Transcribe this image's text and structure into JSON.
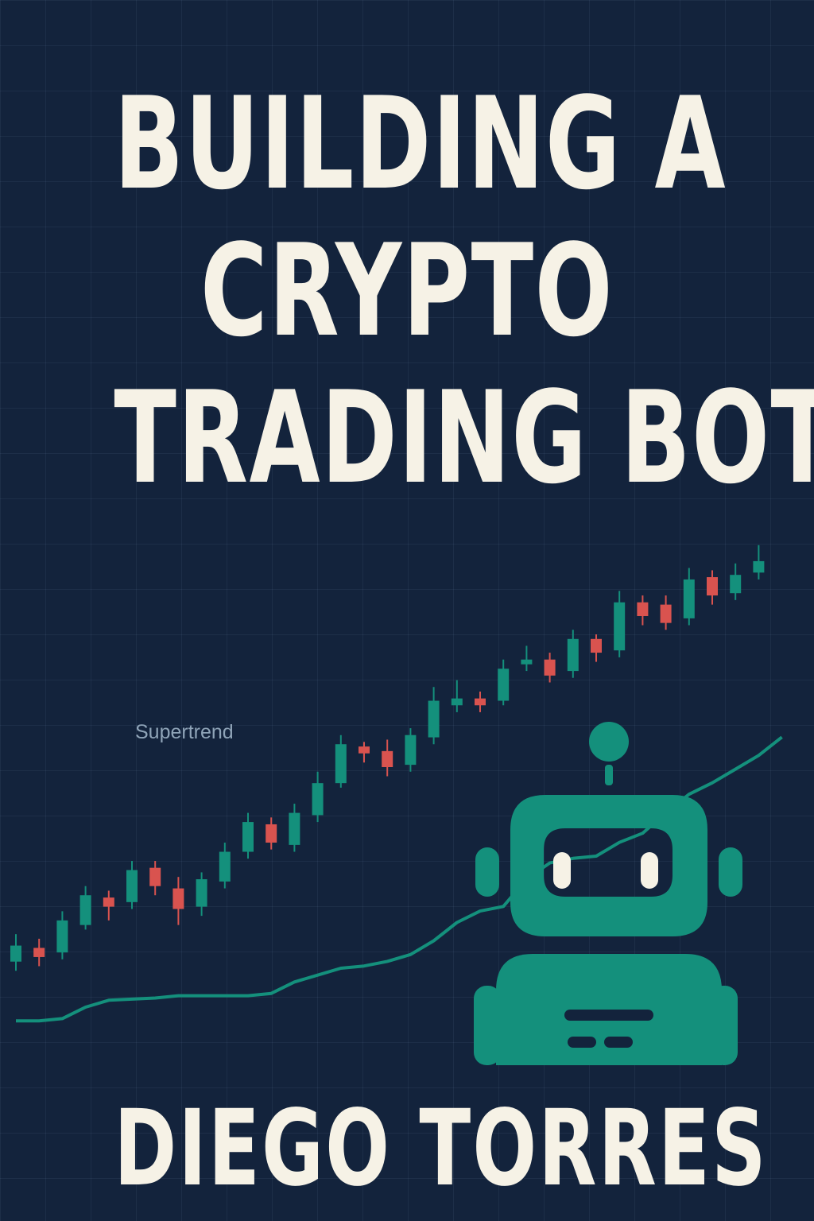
{
  "cover": {
    "title_lines": [
      "BUILDING A",
      "CRYPTO",
      "TRADING BOT"
    ],
    "author": "DIEGO TORRES",
    "background_color": "#13233c",
    "accent_color": "#14907c",
    "down_color": "#d9534f",
    "text_color": "#f6f2e6"
  },
  "chart": {
    "indicator_label": "Supertrend",
    "candles": [
      {
        "o": 102.0,
        "c": 109.0,
        "h": 114.0,
        "l": 98.0
      },
      {
        "o": 108.0,
        "c": 104.0,
        "h": 112.0,
        "l": 100.0
      },
      {
        "o": 106.0,
        "c": 120.0,
        "h": 124.0,
        "l": 103.0
      },
      {
        "o": 118.0,
        "c": 131.0,
        "h": 135.0,
        "l": 116.0
      },
      {
        "o": 130.0,
        "c": 126.0,
        "h": 133.0,
        "l": 120.0
      },
      {
        "o": 128.0,
        "c": 142.0,
        "h": 146.0,
        "l": 125.0
      },
      {
        "o": 143.0,
        "c": 135.0,
        "h": 146.0,
        "l": 131.0
      },
      {
        "o": 134.0,
        "c": 125.0,
        "h": 139.0,
        "l": 118.0
      },
      {
        "o": 126.0,
        "c": 138.0,
        "h": 141.0,
        "l": 122.0
      },
      {
        "o": 137.0,
        "c": 150.0,
        "h": 154.0,
        "l": 134.0
      },
      {
        "o": 150.0,
        "c": 163.0,
        "h": 167.0,
        "l": 147.0
      },
      {
        "o": 162.0,
        "c": 154.0,
        "h": 165.0,
        "l": 151.0
      },
      {
        "o": 153.0,
        "c": 167.0,
        "h": 171.0,
        "l": 150.0
      },
      {
        "o": 166.0,
        "c": 180.0,
        "h": 185.0,
        "l": 163.0
      },
      {
        "o": 180.0,
        "c": 197.0,
        "h": 201.0,
        "l": 178.0
      },
      {
        "o": 196.0,
        "c": 193.0,
        "h": 198.0,
        "l": 189.0
      },
      {
        "o": 194.0,
        "c": 187.0,
        "h": 199.0,
        "l": 183.0
      },
      {
        "o": 188.0,
        "c": 201.0,
        "h": 204.0,
        "l": 185.0
      },
      {
        "o": 200.0,
        "c": 216.0,
        "h": 222.0,
        "l": 197.0
      },
      {
        "o": 214.0,
        "c": 217.0,
        "h": 225.0,
        "l": 211.0
      },
      {
        "o": 217.0,
        "c": 214.0,
        "h": 220.0,
        "l": 211.0
      },
      {
        "o": 216.0,
        "c": 230.0,
        "h": 234.0,
        "l": 214.0
      },
      {
        "o": 232.0,
        "c": 234.0,
        "h": 240.0,
        "l": 229.0
      },
      {
        "o": 234.0,
        "c": 227.0,
        "h": 237.0,
        "l": 224.0
      },
      {
        "o": 229.0,
        "c": 243.0,
        "h": 247.0,
        "l": 226.0
      },
      {
        "o": 243.0,
        "c": 237.0,
        "h": 245.0,
        "l": 233.0
      },
      {
        "o": 238.0,
        "c": 259.0,
        "h": 264.0,
        "l": 235.0
      },
      {
        "o": 259.0,
        "c": 253.0,
        "h": 262.0,
        "l": 249.0
      },
      {
        "o": 258.0,
        "c": 250.0,
        "h": 262.0,
        "l": 247.0
      },
      {
        "o": 252.0,
        "c": 269.0,
        "h": 274.0,
        "l": 249.0
      },
      {
        "o": 270.0,
        "c": 262.0,
        "h": 273.0,
        "l": 258.0
      },
      {
        "o": 263.0,
        "c": 271.0,
        "h": 276.0,
        "l": 260.0
      },
      {
        "o": 272.0,
        "c": 277.0,
        "h": 284.0,
        "l": 269.0
      }
    ],
    "supertrend_segments": [
      [
        90,
        90,
        91,
        96,
        99,
        99.5,
        100,
        101,
        101,
        101,
        101,
        102,
        107,
        110,
        113,
        114,
        116,
        119,
        125,
        133,
        138,
        140,
        152,
        159,
        161,
        162,
        168,
        172,
        181,
        189,
        194,
        200,
        206,
        214
      ]
    ]
  }
}
